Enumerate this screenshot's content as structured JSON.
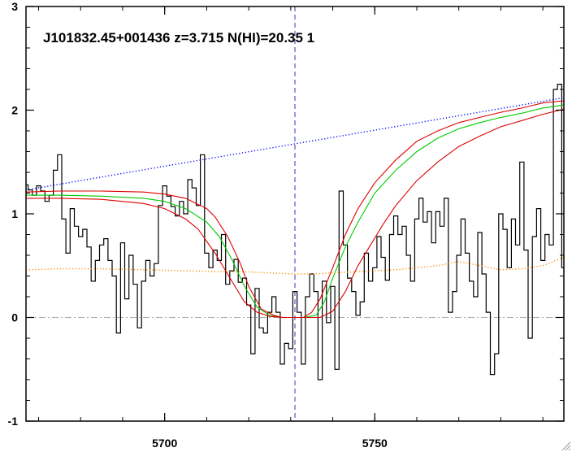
{
  "chart_data": {
    "type": "line",
    "title": "J101832.45+001436 z=3.715 N(HI)=20.35 1",
    "xlabel": "",
    "ylabel": "",
    "xlim": [
      5667,
      5795
    ],
    "ylim": [
      -1.0,
      3.0
    ],
    "x_ticks": [
      5700,
      5750
    ],
    "x_tick_labels": [
      "5700",
      "5750"
    ],
    "y_ticks": [
      -1,
      0,
      1,
      2,
      3
    ],
    "y_tick_labels": [
      "-1",
      "0",
      "1",
      "2",
      "3"
    ],
    "zero_line": 0,
    "line_center_x": 5731,
    "grid": false,
    "series": [
      {
        "style": "histogram",
        "color": "#000000",
        "x": [
          5667.0,
          5668.0,
          5669.0,
          5670.0,
          5671.0,
          5672.0,
          5673.0,
          5674.0,
          5675.0,
          5676.0,
          5677.0,
          5678.0,
          5679.0,
          5680.0,
          5681.0,
          5682.0,
          5683.0,
          5684.0,
          5685.0,
          5686.0,
          5687.0,
          5688.0,
          5689.0,
          5690.0,
          5691.0,
          5692.0,
          5693.0,
          5694.0,
          5695.0,
          5696.0,
          5697.0,
          5698.0,
          5699.0,
          5700.0,
          5701.0,
          5702.0,
          5703.0,
          5704.0,
          5705.0,
          5706.0,
          5707.0,
          5708.0,
          5709.0,
          5710.0,
          5711.0,
          5712.0,
          5713.0,
          5714.0,
          5715.0,
          5716.0,
          5717.0,
          5718.0,
          5719.0,
          5720.0,
          5721.0,
          5722.0,
          5723.0,
          5724.0,
          5725.0,
          5726.0,
          5727.0,
          5728.0,
          5729.0,
          5730.0,
          5731.0,
          5732.0,
          5733.0,
          5734.0,
          5735.0,
          5736.0,
          5737.0,
          5738.0,
          5739.0,
          5740.0,
          5741.0,
          5742.0,
          5743.0,
          5744.0,
          5745.0,
          5746.0,
          5747.0,
          5748.0,
          5749.0,
          5750.0,
          5751.0,
          5752.0,
          5753.0,
          5754.0,
          5755.0,
          5756.0,
          5757.0,
          5758.0,
          5759.0,
          5760.0,
          5761.0,
          5762.0,
          5763.0,
          5764.0,
          5765.0,
          5766.0,
          5767.0,
          5768.0,
          5769.0,
          5770.0,
          5771.0,
          5772.0,
          5773.0,
          5774.0,
          5775.0,
          5776.0,
          5777.0,
          5778.0,
          5779.0,
          5780.0,
          5781.0,
          5782.0,
          5783.0,
          5784.0,
          5785.0,
          5786.0,
          5787.0,
          5788.0,
          5789.0,
          5790.0,
          5791.0,
          5792.0,
          5793.0,
          5794.0,
          5795.0
        ],
        "y": [
          1.28,
          1.23,
          1.18,
          1.27,
          1.22,
          1.12,
          1.18,
          1.42,
          1.57,
          0.95,
          0.62,
          1.05,
          0.88,
          0.78,
          0.85,
          0.68,
          0.35,
          0.55,
          0.7,
          0.76,
          0.55,
          0.4,
          -0.15,
          0.72,
          0.18,
          0.6,
          0.32,
          -0.1,
          0.35,
          0.55,
          0.4,
          0.52,
          1.08,
          1.27,
          1.17,
          1.07,
          0.98,
          1.12,
          1.0,
          1.33,
          1.25,
          1.08,
          1.57,
          0.62,
          0.48,
          0.65,
          0.55,
          0.8,
          0.32,
          0.45,
          0.56,
          0.34,
          0.38,
          0.12,
          -0.35,
          0.28,
          -0.1,
          -0.15,
          0.05,
          0.2,
          0.05,
          -0.45,
          -0.25,
          -0.3,
          0.25,
          0.05,
          -0.45,
          0.2,
          0.42,
          0.25,
          -0.6,
          0.35,
          -0.05,
          0.3,
          -0.5,
          1.22,
          0.7,
          0.38,
          0.25,
          0.02,
          0.15,
          0.62,
          0.35,
          0.48,
          0.78,
          0.58,
          0.36,
          0.8,
          0.98,
          0.8,
          0.88,
          0.6,
          0.35,
          0.95,
          1.15,
          0.92,
          1.02,
          0.72,
          1.02,
          0.88,
          1.15,
          0.05,
          0.25,
          0.6,
          0.95,
          0.62,
          0.35,
          0.2,
          0.82,
          0.42,
          0.05,
          -0.55,
          -0.35,
          1.0,
          0.85,
          0.48,
          0.95,
          0.7,
          1.5,
          0.65,
          -0.2,
          0.78,
          1.05,
          0.55,
          0.8,
          0.7,
          2.2,
          2.25,
          0.48
        ]
      },
      {
        "style": "dotted",
        "color": "#0000ff",
        "x": [
          5667,
          5795
        ],
        "y": [
          1.23,
          2.12
        ]
      },
      {
        "style": "solid",
        "color": "#00cc00",
        "x": [
          5667,
          5675,
          5685,
          5695,
          5700,
          5705,
          5710,
          5713,
          5716,
          5719,
          5722,
          5725,
          5728,
          5730,
          5733,
          5736,
          5738,
          5740,
          5743,
          5746,
          5750,
          5755,
          5760,
          5765,
          5770,
          5775,
          5780,
          5785,
          5790,
          5795
        ],
        "y": [
          1.18,
          1.18,
          1.17,
          1.15,
          1.12,
          1.05,
          0.92,
          0.78,
          0.56,
          0.3,
          0.1,
          0.02,
          0.0,
          0.0,
          0.0,
          0.02,
          0.15,
          0.38,
          0.68,
          0.92,
          1.2,
          1.42,
          1.6,
          1.73,
          1.82,
          1.88,
          1.93,
          1.97,
          2.02,
          2.05
        ]
      },
      {
        "style": "solid",
        "color": "#dd0000",
        "x": [
          5667,
          5675,
          5685,
          5695,
          5700,
          5705,
          5710,
          5712,
          5715,
          5718,
          5720,
          5723,
          5726,
          5728,
          5730,
          5733,
          5735,
          5737,
          5740,
          5743,
          5746,
          5750,
          5755,
          5760,
          5765,
          5770,
          5775,
          5780,
          5785,
          5790,
          5795
        ],
        "y": [
          1.21,
          1.22,
          1.22,
          1.21,
          1.19,
          1.15,
          1.05,
          0.97,
          0.78,
          0.52,
          0.3,
          0.08,
          0.02,
          0.0,
          0.0,
          0.0,
          0.05,
          0.18,
          0.48,
          0.8,
          1.05,
          1.3,
          1.52,
          1.7,
          1.8,
          1.88,
          1.93,
          1.98,
          2.02,
          2.07,
          2.09
        ]
      },
      {
        "style": "solid",
        "color": "#dd0000",
        "x": [
          5667,
          5675,
          5685,
          5695,
          5700,
          5705,
          5708,
          5712,
          5716,
          5719,
          5722,
          5725,
          5728,
          5731,
          5734,
          5737,
          5740,
          5743,
          5746,
          5749,
          5752,
          5755,
          5760,
          5765,
          5770,
          5775,
          5780,
          5785,
          5790,
          5795
        ],
        "y": [
          1.15,
          1.15,
          1.14,
          1.1,
          1.05,
          0.95,
          0.85,
          0.62,
          0.35,
          0.15,
          0.05,
          0.01,
          0.0,
          0.0,
          0.0,
          0.0,
          0.06,
          0.25,
          0.5,
          0.7,
          0.9,
          1.08,
          1.32,
          1.5,
          1.65,
          1.75,
          1.84,
          1.9,
          1.96,
          2.01
        ]
      },
      {
        "style": "dotted",
        "color": "#ff8800",
        "x": [
          5667,
          5675,
          5685,
          5695,
          5705,
          5715,
          5720,
          5725,
          5730,
          5735,
          5740,
          5745,
          5750,
          5755,
          5760,
          5765,
          5770,
          5775,
          5780,
          5785,
          5790,
          5795
        ],
        "y": [
          0.46,
          0.47,
          0.47,
          0.46,
          0.45,
          0.44,
          0.44,
          0.43,
          0.42,
          0.42,
          0.43,
          0.44,
          0.45,
          0.46,
          0.48,
          0.5,
          0.54,
          0.5,
          0.46,
          0.47,
          0.5,
          0.58
        ]
      }
    ]
  }
}
